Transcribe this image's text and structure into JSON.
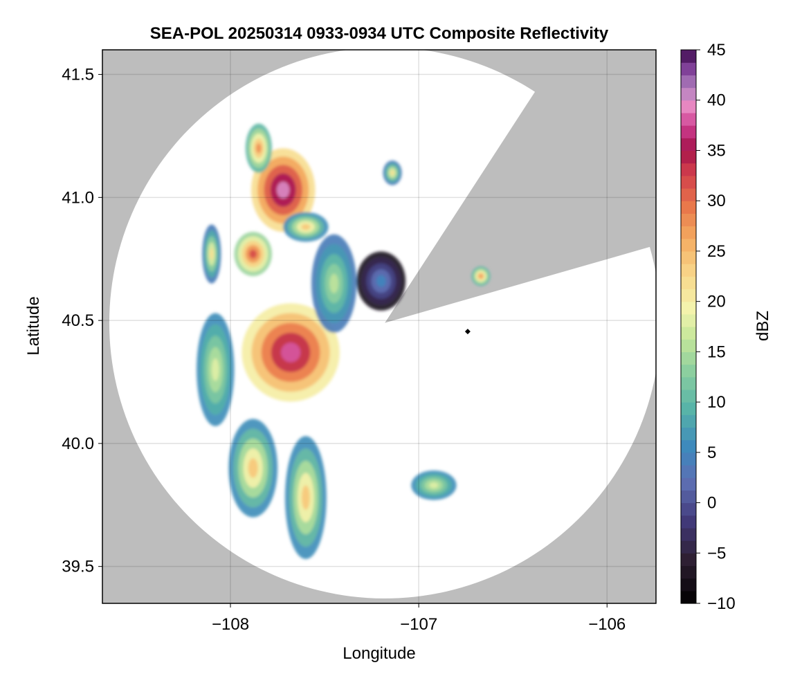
{
  "chart_data": {
    "type": "heatmap",
    "title": "SEA-POL 20250314 0933-0934 UTC Composite Reflectivity",
    "xlabel": "Longitude",
    "ylabel": "Latitude",
    "xlim": [
      -108.68,
      -105.74
    ],
    "ylim": [
      39.35,
      41.6
    ],
    "x_ticks": [
      -108,
      -107,
      -106
    ],
    "x_tick_labels": [
      "−108",
      "−107",
      "−106"
    ],
    "y_ticks": [
      39.5,
      40.0,
      40.5,
      41.0,
      41.5
    ],
    "y_tick_labels": [
      "39.5",
      "40.0",
      "40.5",
      "41.0",
      "41.5"
    ],
    "grid": true,
    "background_color": "#bdbdbd",
    "coverage_color": "#ffffff",
    "radar": {
      "center_lon": -107.18,
      "center_lat": 40.49,
      "range_deg_lat": 1.12,
      "blocked_sector_deg": [
        16,
        57
      ]
    },
    "marker": {
      "lon": -106.74,
      "lat": 40.455,
      "shape": "diamond",
      "color": "#000000"
    },
    "colorbar": {
      "label": "dBZ",
      "min": -10,
      "max": 45,
      "ticks": [
        -10,
        -5,
        0,
        5,
        10,
        15,
        20,
        25,
        30,
        35,
        40,
        45
      ],
      "tick_labels": [
        "−10",
        "−5",
        "0",
        "5",
        "10",
        "15",
        "20",
        "25",
        "30",
        "35",
        "40",
        "45"
      ],
      "colormap": "spectral_r_extended",
      "levels": 44
    },
    "echoes": [
      {
        "name": "northwest-cell",
        "lon": -107.72,
        "lat": 41.03,
        "rx": 0.17,
        "ry": 0.17,
        "peak_dbz": 40
      },
      {
        "name": "northwest-arm",
        "lon": -107.85,
        "lat": 41.2,
        "rx": 0.07,
        "ry": 0.1,
        "peak_dbz": 28
      },
      {
        "name": "northwest-tail",
        "lon": -107.6,
        "lat": 40.88,
        "rx": 0.12,
        "ry": 0.06,
        "peak_dbz": 24
      },
      {
        "name": "west-cell",
        "lon": -107.88,
        "lat": 40.77,
        "rx": 0.1,
        "ry": 0.09,
        "peak_dbz": 32
      },
      {
        "name": "far-west-cell",
        "lon": -108.1,
        "lat": 40.77,
        "rx": 0.05,
        "ry": 0.12,
        "peak_dbz": 22
      },
      {
        "name": "central-cell",
        "lon": -107.68,
        "lat": 40.37,
        "rx": 0.26,
        "ry": 0.2,
        "peak_dbz": 38
      },
      {
        "name": "central-north-band",
        "lon": -107.45,
        "lat": 40.65,
        "rx": 0.12,
        "ry": 0.2,
        "peak_dbz": 16
      },
      {
        "name": "north-band-east",
        "lon": -107.2,
        "lat": 40.66,
        "rx": 0.13,
        "ry": 0.12,
        "peak_dbz": 5
      },
      {
        "name": "southwest-band",
        "lon": -108.08,
        "lat": 40.3,
        "rx": 0.1,
        "ry": 0.23,
        "peak_dbz": 18
      },
      {
        "name": "south-band-a",
        "lon": -107.88,
        "lat": 39.9,
        "rx": 0.13,
        "ry": 0.2,
        "peak_dbz": 24
      },
      {
        "name": "south-band-b",
        "lon": -107.6,
        "lat": 39.78,
        "rx": 0.11,
        "ry": 0.25,
        "peak_dbz": 24
      },
      {
        "name": "southeast-cell",
        "lon": -106.92,
        "lat": 39.83,
        "rx": 0.12,
        "ry": 0.06,
        "peak_dbz": 18
      },
      {
        "name": "east-cell",
        "lon": -106.67,
        "lat": 40.68,
        "rx": 0.05,
        "ry": 0.04,
        "peak_dbz": 28
      },
      {
        "name": "north-cell",
        "lon": -107.14,
        "lat": 41.1,
        "rx": 0.05,
        "ry": 0.05,
        "peak_dbz": 22
      }
    ]
  }
}
